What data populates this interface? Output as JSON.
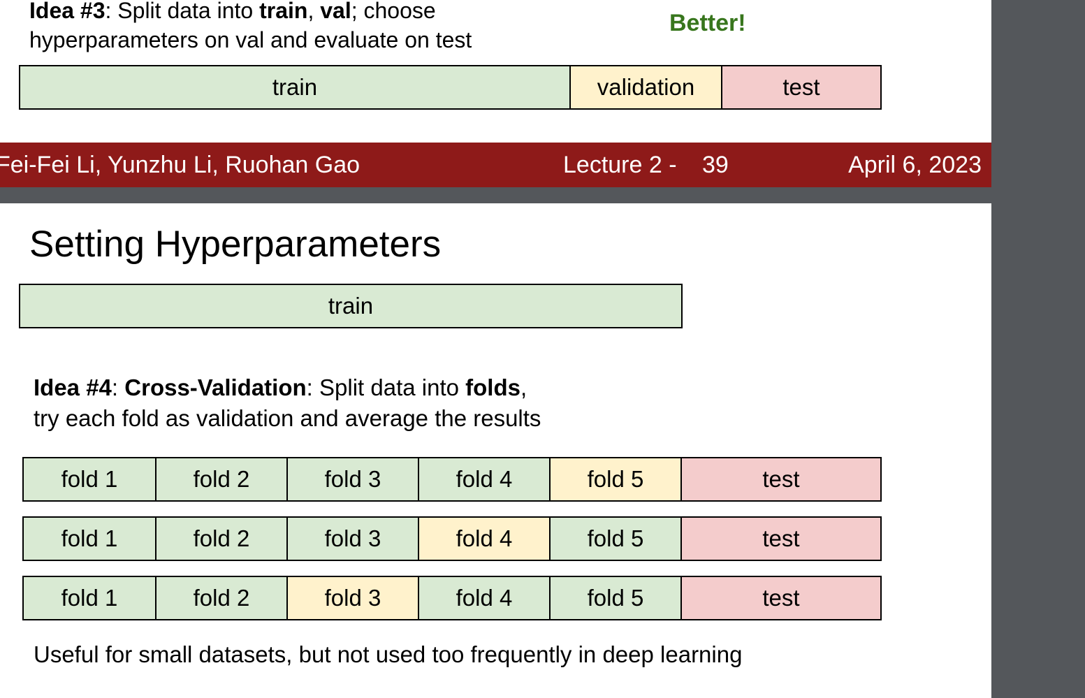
{
  "slide1": {
    "idea_label": "Idea #3",
    "idea_sep": ": ",
    "idea_text1": "Split data into ",
    "idea_train": "train",
    "idea_comma": ", ",
    "idea_val": "val",
    "idea_text2": "; choose",
    "idea_line2": "hyperparameters on val and evaluate on test",
    "better": "Better!",
    "bar": [
      "train",
      "validation",
      "test"
    ]
  },
  "footer": {
    "authors": "Fei-Fei Li, Yunzhu Li, Ruohan Gao",
    "lecture": "Lecture 2 -",
    "page": "39",
    "date": "April 6, 2023"
  },
  "slide2": {
    "title": "Setting Hyperparameters",
    "train_bar": "train",
    "idea_label": "Idea #4",
    "idea_sep": ": ",
    "idea_cv": "Cross-Validation",
    "idea_text1": ": Split data into ",
    "idea_folds": "folds",
    "idea_comma": ",",
    "idea_line2": "try each fold as validation and average the results",
    "rows": [
      [
        "fold 1",
        "fold 2",
        "fold 3",
        "fold 4",
        "fold 5",
        "test"
      ],
      [
        "fold 1",
        "fold 2",
        "fold 3",
        "fold 4",
        "fold 5",
        "test"
      ],
      [
        "fold 1",
        "fold 2",
        "fold 3",
        "fold 4",
        "fold 5",
        "test"
      ]
    ],
    "note": "Useful for small datasets, but not used too frequently in deep learning"
  },
  "colors": {
    "train": "#d9ead3",
    "validation": "#fff2cc",
    "test": "#f4cccc",
    "footer": "#8e1a19",
    "better": "#38761d",
    "viewer_bg": "#54575b"
  }
}
